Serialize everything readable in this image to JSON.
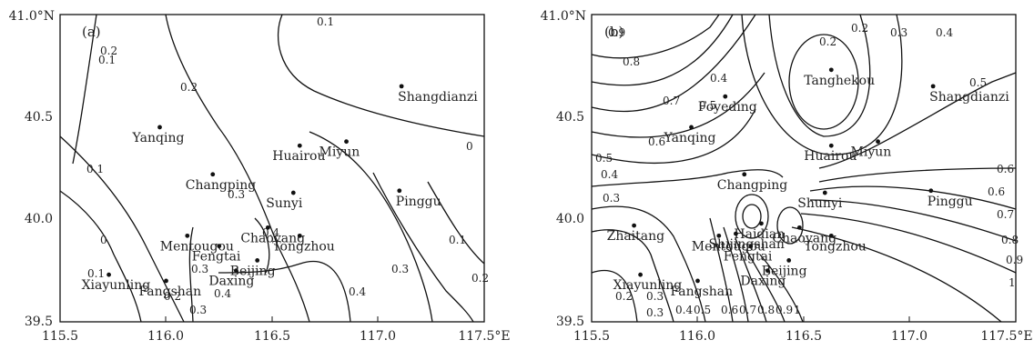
{
  "axes": {
    "x_ticks": [
      "115.5",
      "116.0",
      "116.5",
      "117.0",
      "117.5°E"
    ],
    "y_ticks": [
      "39.5",
      "40.0",
      "40.5",
      "41.0°N"
    ],
    "xlim": [
      115.5,
      117.5
    ],
    "ylim": [
      39.5,
      41.0
    ]
  },
  "panels": [
    {
      "id": "a",
      "label": "(a)",
      "stations": [
        {
          "name": "Shangdianzi",
          "lon": 117.11,
          "lat": 40.65
        },
        {
          "name": "Yanqing",
          "lon": 115.97,
          "lat": 40.45
        },
        {
          "name": "Huairou",
          "lon": 116.63,
          "lat": 40.36
        },
        {
          "name": "Miyun",
          "lon": 116.85,
          "lat": 40.38
        },
        {
          "name": "Changping",
          "lon": 116.22,
          "lat": 40.22
        },
        {
          "name": "Pinggu",
          "lon": 117.1,
          "lat": 40.14
        },
        {
          "name": "Sunyi",
          "lon": 116.6,
          "lat": 40.13
        },
        {
          "name": "Mentougou",
          "lon": 116.1,
          "lat": 39.92
        },
        {
          "name": "Chaoyang",
          "lon": 116.48,
          "lat": 39.96
        },
        {
          "name": "Tongzhou",
          "lon": 116.63,
          "lat": 39.92
        },
        {
          "name": "Fengtai",
          "lon": 116.25,
          "lat": 39.87
        },
        {
          "name": "Fangshan",
          "lon": 116.0,
          "lat": 39.7
        },
        {
          "name": "Beijing",
          "lon": 116.43,
          "lat": 39.8
        },
        {
          "name": "Daxing",
          "lon": 116.33,
          "lat": 39.75
        },
        {
          "name": "Xiayunling",
          "lon": 115.73,
          "lat": 39.73
        }
      ],
      "contour_labels": [
        "0.1",
        "0.2",
        "0.2",
        "0.1",
        "0.3",
        "0",
        "0.1",
        "0.3",
        "0.4",
        "0.4",
        "0.4",
        "0.3",
        "0.2",
        "0.1",
        "0",
        "0.1",
        "0.2",
        "0.3"
      ]
    },
    {
      "id": "b",
      "label": "(b)",
      "stations": [
        {
          "name": "Tanghekou",
          "lon": 116.63,
          "lat": 40.73
        },
        {
          "name": "Shangdianzi",
          "lon": 117.11,
          "lat": 40.65
        },
        {
          "name": "Foyeding",
          "lon": 116.13,
          "lat": 40.6
        },
        {
          "name": "Yanqing",
          "lon": 115.97,
          "lat": 40.45
        },
        {
          "name": "Huairou",
          "lon": 116.63,
          "lat": 40.36
        },
        {
          "name": "Miyun",
          "lon": 116.85,
          "lat": 40.38
        },
        {
          "name": "Changping",
          "lon": 116.22,
          "lat": 40.22
        },
        {
          "name": "Haidian",
          "lon": 116.3,
          "lat": 39.98
        },
        {
          "name": "Shunyi",
          "lon": 116.6,
          "lat": 40.13
        },
        {
          "name": "Pinggu",
          "lon": 117.1,
          "lat": 40.14
        },
        {
          "name": "Shijingshan",
          "lon": 116.18,
          "lat": 39.93
        },
        {
          "name": "Chaoyang",
          "lon": 116.48,
          "lat": 39.96
        },
        {
          "name": "Zhaitang",
          "lon": 115.7,
          "lat": 39.97
        },
        {
          "name": "Mentougou",
          "lon": 116.1,
          "lat": 39.92
        },
        {
          "name": "Tongzhou",
          "lon": 116.63,
          "lat": 39.92
        },
        {
          "name": "Fengtai",
          "lon": 116.25,
          "lat": 39.87
        },
        {
          "name": "Fangshan",
          "lon": 116.0,
          "lat": 39.7
        },
        {
          "name": "Beijing",
          "lon": 116.43,
          "lat": 39.8
        },
        {
          "name": "Daxing",
          "lon": 116.33,
          "lat": 39.75
        },
        {
          "name": "Xiayunling",
          "lon": 115.73,
          "lat": 39.73
        }
      ],
      "contour_labels": [
        "0.9",
        "0.8",
        "0.7",
        "0.6",
        "0.5",
        "0.4",
        "0.3",
        "0.2",
        "0.2",
        "0.3",
        "0.4",
        "0.5",
        "0.6",
        "0.5",
        "0.4",
        "0.3",
        "0.6",
        "0.7",
        "0.8",
        "0.9",
        "1",
        "0.2",
        "0.3",
        "0.4",
        "0.5",
        "0.6",
        "0.7",
        "0.8",
        "0.9",
        "1"
      ]
    }
  ]
}
